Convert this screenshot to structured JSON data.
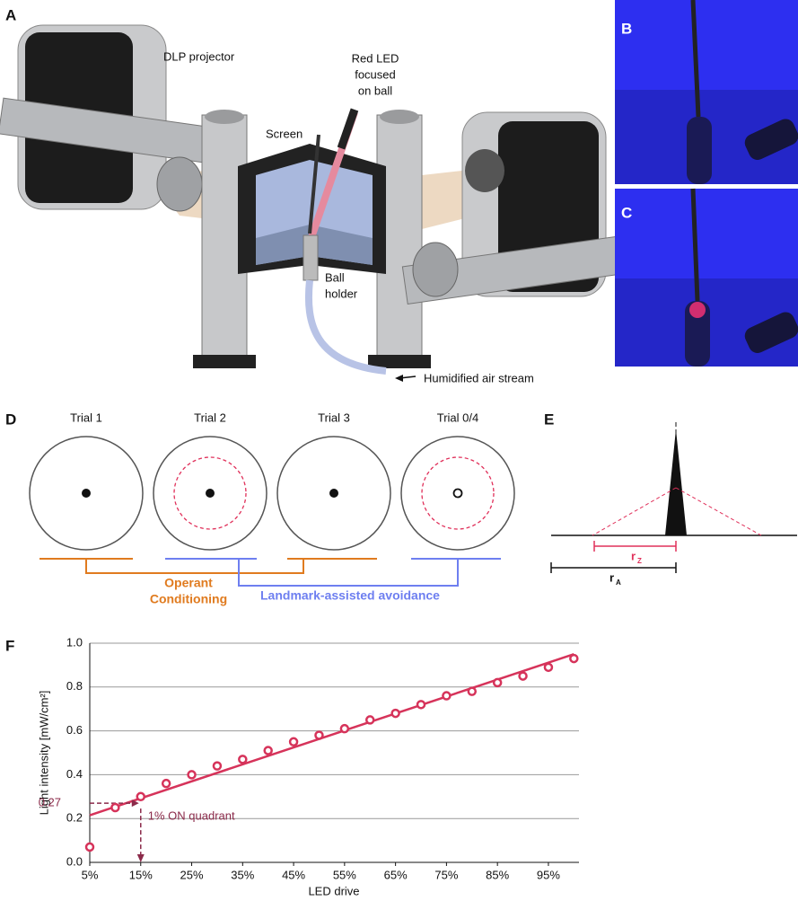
{
  "panel_labels": [
    "A",
    "B",
    "C",
    "D",
    "E",
    "F"
  ],
  "panel_a": {
    "dlp_projector": "DLP projector",
    "red_led": [
      "Red LED",
      "focused",
      "on ball"
    ],
    "screen": "Screen",
    "ball_holder": [
      "Ball",
      "holder"
    ],
    "air_stream": "Humidified air stream"
  },
  "panel_d": {
    "trials": [
      "Trial 1",
      "Trial 2",
      "Trial 3",
      "Trial 0/4"
    ],
    "operant": [
      "Operant",
      "Conditioning"
    ],
    "landmark": "Landmark-assisted avoidance"
  },
  "panel_e": {
    "rz": {
      "main": "r",
      "sub": "Z"
    },
    "ra": {
      "main": "r",
      "sub": "A"
    }
  },
  "chart_data": {
    "type": "scatter",
    "x_label": "LED drive",
    "y_label": "Light intensity [mW/cm²]",
    "x": [
      5,
      10,
      15,
      20,
      25,
      30,
      35,
      40,
      45,
      50,
      55,
      60,
      65,
      70,
      75,
      80,
      85,
      90,
      95,
      100
    ],
    "values": [
      0.07,
      0.25,
      0.3,
      0.36,
      0.4,
      0.44,
      0.47,
      0.51,
      0.55,
      0.58,
      0.61,
      0.65,
      0.68,
      0.72,
      0.76,
      0.78,
      0.82,
      0.85,
      0.89,
      0.93
    ],
    "color": "#d6335a",
    "fit_line": {
      "x": [
        5,
        100
      ],
      "values": [
        0.215,
        0.95
      ]
    },
    "xlim": [
      5,
      101
    ],
    "ylim": [
      0,
      1
    ],
    "xticks": [
      {
        "value": 5,
        "label": "5%"
      },
      {
        "value": 15,
        "label": "15%"
      },
      {
        "value": 25,
        "label": "25%"
      },
      {
        "value": 35,
        "label": "35%"
      },
      {
        "value": 45,
        "label": "45%"
      },
      {
        "value": 55,
        "label": "55%"
      },
      {
        "value": 65,
        "label": "65%"
      },
      {
        "value": 75,
        "label": "75%"
      },
      {
        "value": 85,
        "label": "85%"
      },
      {
        "value": 95,
        "label": "95%"
      }
    ],
    "yticks": [
      {
        "value": 0,
        "label": "0.0"
      },
      0.2,
      0.4,
      0.6,
      0.8,
      {
        "value": 1,
        "label": "1.0"
      }
    ],
    "grid": true,
    "annotation": {
      "text": "1% ON quadrant",
      "x": 15,
      "y": 0.27,
      "color": "#8b2a4a"
    }
  }
}
